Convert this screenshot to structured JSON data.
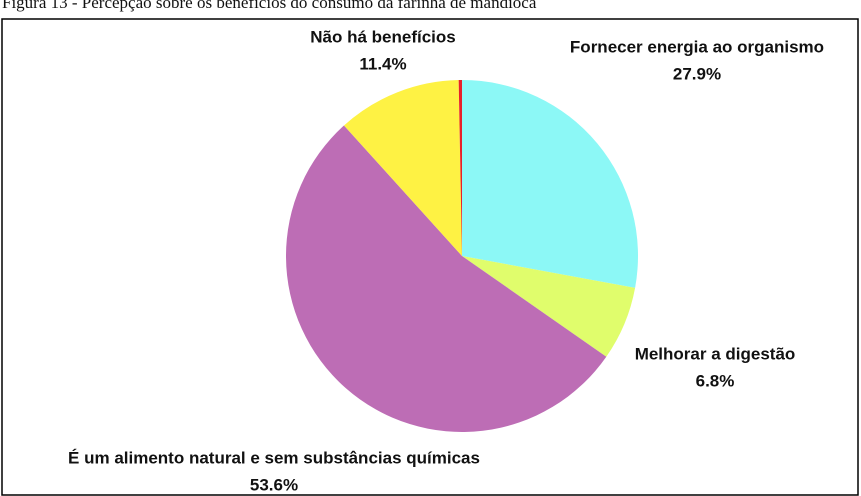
{
  "chart_data": {
    "type": "pie",
    "title": "Figura 13 - Percepção sobre os benefícios do consumo da farinha de mandioca",
    "categories": [
      "Fornecer energia ao organismo",
      "Melhorar a digestão",
      "É um alimento natural e sem substâncias químicas",
      "Não há benefícios",
      null
    ],
    "values": [
      27.9,
      6.8,
      53.6,
      11.4,
      0.3
    ],
    "value_labels": [
      "27.9%",
      "6.8%",
      "53.6%",
      "11.4%",
      null
    ],
    "colors": [
      "#8cf8f6",
      "#e0fd6c",
      "#bd6db5",
      "#fef244",
      "#e8202a"
    ]
  }
}
